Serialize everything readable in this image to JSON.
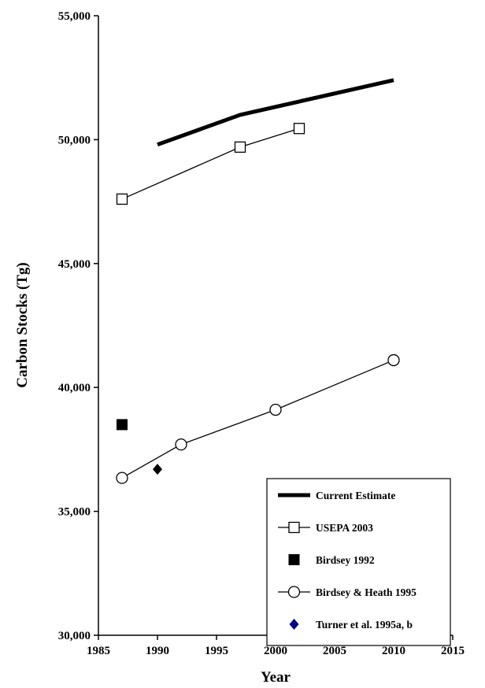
{
  "chart_data": {
    "type": "line",
    "xlabel": "Year",
    "ylabel": "Carbon Stocks (Tg)",
    "xlim": [
      1985,
      2015
    ],
    "ylim": [
      30000,
      55000
    ],
    "x_ticks": [
      "1985",
      "1990",
      "1995",
      "2000",
      "2005",
      "2010",
      "2015"
    ],
    "y_ticks": [
      "30,000",
      "35,000",
      "40,000",
      "45,000",
      "50,000",
      "55,000"
    ],
    "x_tick_values": [
      1985,
      1990,
      1995,
      2000,
      2005,
      2010,
      2015
    ],
    "y_tick_values": [
      30000,
      35000,
      40000,
      45000,
      50000,
      55000
    ],
    "grid": false,
    "legend_position": "bottom-right",
    "series": [
      {
        "name": "Current Estimate",
        "marker": "none",
        "line": "thick",
        "color": "#000000",
        "points": [
          [
            1990,
            49800
          ],
          [
            1997,
            51000
          ],
          [
            2010,
            52400
          ]
        ]
      },
      {
        "name": "USEPA 2003",
        "marker": "open-square",
        "line": "thin",
        "color": "#000000",
        "points": [
          [
            1987,
            47600
          ],
          [
            1997,
            49700
          ],
          [
            2002,
            50450
          ]
        ]
      },
      {
        "name": "Birdsey 1992",
        "marker": "filled-square",
        "line": "none",
        "color": "#000000",
        "points": [
          [
            1987,
            38500
          ]
        ]
      },
      {
        "name": "Birdsey & Heath 1995",
        "marker": "open-circle",
        "line": "thin",
        "color": "#000000",
        "points": [
          [
            1987,
            36350
          ],
          [
            1992,
            37700
          ],
          [
            2000,
            39100
          ],
          [
            2010,
            41100
          ]
        ]
      },
      {
        "name": "Turner et al. 1995a, b",
        "marker": "filled-diamond",
        "line": "none",
        "color": "#000000",
        "legend_color": "#000080",
        "points": [
          [
            1990,
            36700
          ]
        ]
      }
    ]
  }
}
